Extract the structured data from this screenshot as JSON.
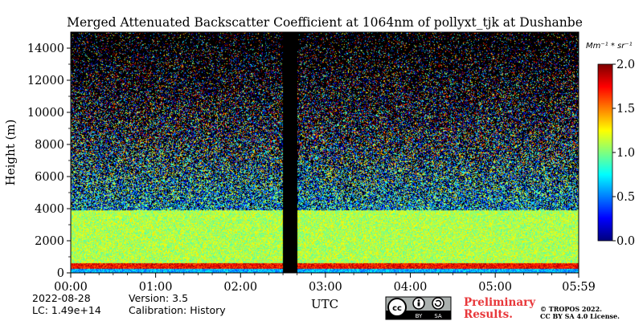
{
  "chart_data": {
    "type": "heatmap",
    "title": "Merged Attenuated Backscatter Coefficient at 1064nm of pollyxt_tjk at Dushanbe",
    "xlabel": "UTC",
    "ylabel": "Height (m)",
    "x_ticks": [
      "00:00",
      "01:00",
      "02:00",
      "03:00",
      "04:00",
      "05:00",
      "05:59"
    ],
    "x_tick_hours": [
      0,
      1,
      2,
      3,
      4,
      5,
      5.983
    ],
    "xlim_hours": [
      0,
      5.983
    ],
    "y_ticks": [
      0,
      2000,
      4000,
      6000,
      8000,
      10000,
      12000,
      14000
    ],
    "ylim": [
      0,
      15000
    ],
    "colorbar": {
      "unit": "Mm⁻¹ * sr⁻¹",
      "range": [
        0.0,
        2.0
      ],
      "ticks": [
        "0.0",
        "0.5",
        "1.0",
        "1.5",
        "2.0"
      ],
      "tick_values": [
        0.0,
        0.5,
        1.0,
        1.5,
        2.0
      ],
      "colormap": "jet"
    },
    "data_gap_hours": [
      2.5,
      2.67
    ],
    "layers": [
      {
        "name": "surface layer",
        "height_range_m": [
          0,
          250
        ],
        "level": 0.6
      },
      {
        "name": "near-surface maximum",
        "height_range_m": [
          250,
          600
        ],
        "level": 1.75
      },
      {
        "name": "boundary layer",
        "height_range_m": [
          600,
          3900
        ],
        "level": 1.1
      },
      {
        "name": "free troposphere (noise)",
        "height_range_m": [
          3900,
          15000
        ],
        "level": 0.4
      }
    ]
  },
  "footer": {
    "date": "2022-08-28",
    "lc": "LC: 1.49e+14",
    "version": "Version: 3.5",
    "calibration": "Calibration: History",
    "preliminary_line1": "Preliminary",
    "preliminary_line2": "Results.",
    "copyright_line1": "© TROPOS 2022.",
    "copyright_line2": "CC BY SA 4.0 License.",
    "cc_badge": "cc",
    "cc_by": "BY",
    "cc_sa": "SA"
  },
  "colors": {
    "background_night": "#000000",
    "preliminary_text": "#e8373a"
  }
}
